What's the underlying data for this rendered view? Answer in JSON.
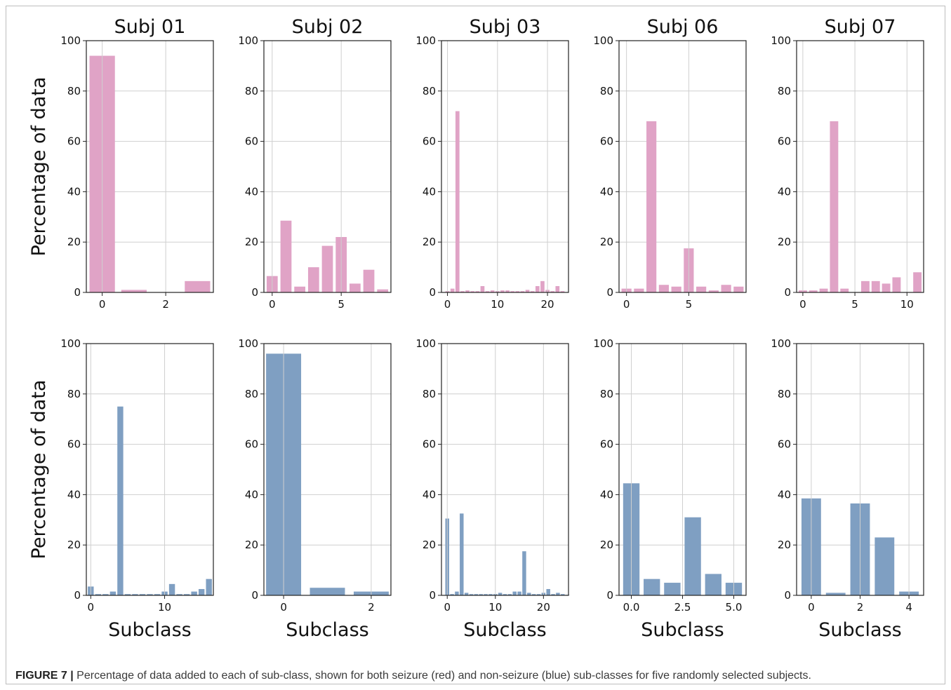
{
  "caption": {
    "label": "FIGURE 7 |",
    "text": " Percentage of data added to each of sub-class, shown for both seizure (red) and non-seizure (blue) sub-classes for five randomly selected subjects."
  },
  "colors": {
    "seizure": "#e0a3c6",
    "non_seizure": "#7f9fc2",
    "grid": "#cfcfcf"
  },
  "chart_data": [
    {
      "type": "bar",
      "group": "seizure",
      "title": "Subj 01",
      "xlabel": "",
      "ylabel": "Percentage of data",
      "x": [
        0,
        1,
        2,
        3
      ],
      "values": [
        94,
        1,
        0,
        4.5
      ],
      "xlim": [
        -0.5,
        3.5
      ],
      "ylim": [
        0,
        100
      ],
      "xticks": [
        0,
        2
      ],
      "xtick_labels": [
        "0",
        "2"
      ],
      "yticks": [
        0,
        20,
        40,
        60,
        80,
        100
      ],
      "grid": true
    },
    {
      "type": "bar",
      "group": "seizure",
      "title": "Subj 02",
      "xlabel": "",
      "ylabel": "",
      "x": [
        0,
        1,
        2,
        3,
        4,
        5,
        6,
        7,
        8
      ],
      "values": [
        6.5,
        28.5,
        2.3,
        10,
        18.5,
        22,
        3.5,
        9,
        1.2
      ],
      "xlim": [
        -0.6,
        8.6
      ],
      "ylim": [
        0,
        100
      ],
      "xticks": [
        0,
        5
      ],
      "xtick_labels": [
        "0",
        "5"
      ],
      "yticks": [
        0,
        20,
        40,
        60,
        80,
        100
      ],
      "grid": true
    },
    {
      "type": "bar",
      "group": "seizure",
      "title": "Subj 03",
      "xlabel": "",
      "ylabel": "",
      "x": [
        0,
        1,
        2,
        3,
        4,
        5,
        6,
        7,
        8,
        9,
        10,
        11,
        12,
        13,
        14,
        15,
        16,
        17,
        18,
        19,
        20,
        21,
        22,
        23
      ],
      "values": [
        0.5,
        1.5,
        72,
        0.5,
        0.8,
        0.5,
        0.5,
        2.5,
        0.5,
        0.8,
        0.5,
        0.8,
        0.8,
        0.5,
        0.5,
        0.5,
        1,
        0.5,
        2.5,
        4.5,
        1,
        0.5,
        2.5,
        0.5
      ],
      "xlim": [
        -1.2,
        24.2
      ],
      "ylim": [
        0,
        100
      ],
      "xticks": [
        0,
        10,
        20
      ],
      "xtick_labels": [
        "0",
        "10",
        "20"
      ],
      "yticks": [
        0,
        20,
        40,
        60,
        80,
        100
      ],
      "grid": true
    },
    {
      "type": "bar",
      "group": "seizure",
      "title": "Subj 06",
      "xlabel": "",
      "ylabel": "",
      "x": [
        0,
        1,
        2,
        3,
        4,
        5,
        6,
        7,
        8,
        9
      ],
      "values": [
        1.5,
        1.5,
        68,
        3,
        2.3,
        17.5,
        2.3,
        0.8,
        3,
        2.3
      ],
      "xlim": [
        -0.6,
        9.6
      ],
      "ylim": [
        0,
        100
      ],
      "xticks": [
        0,
        5
      ],
      "xtick_labels": [
        "0",
        "5"
      ],
      "yticks": [
        0,
        20,
        40,
        60,
        80,
        100
      ],
      "grid": true
    },
    {
      "type": "bar",
      "group": "seizure",
      "title": "Subj 07",
      "xlabel": "",
      "ylabel": "",
      "x": [
        0,
        1,
        2,
        3,
        4,
        5,
        6,
        7,
        8,
        9,
        10,
        11
      ],
      "values": [
        0.8,
        0.8,
        1.5,
        68,
        1.5,
        0,
        4.5,
        4.5,
        3.5,
        6,
        0,
        8
      ],
      "xlim": [
        -0.6,
        11.6
      ],
      "ylim": [
        0,
        100
      ],
      "xticks": [
        0,
        5,
        10
      ],
      "xtick_labels": [
        "0",
        "5",
        "10"
      ],
      "yticks": [
        0,
        20,
        40,
        60,
        80,
        100
      ],
      "grid": true
    },
    {
      "type": "bar",
      "group": "non-seizure",
      "title": "",
      "xlabel": "Subclass",
      "ylabel": "Percentage of data",
      "x": [
        0,
        1,
        2,
        3,
        4,
        5,
        6,
        7,
        8,
        9,
        10,
        11,
        12,
        13,
        14,
        15,
        16
      ],
      "values": [
        3.5,
        0.5,
        0.5,
        1.5,
        75,
        0.5,
        0.5,
        0.5,
        0.5,
        0.5,
        1.5,
        4.5,
        0.5,
        0.5,
        1.5,
        2.5,
        6.5
      ],
      "xlim": [
        -0.6,
        16.6
      ],
      "ylim": [
        0,
        100
      ],
      "xticks": [
        0,
        10
      ],
      "xtick_labels": [
        "0",
        "10"
      ],
      "yticks": [
        0,
        20,
        40,
        60,
        80,
        100
      ],
      "grid": true
    },
    {
      "type": "bar",
      "group": "non-seizure",
      "title": "",
      "xlabel": "Subclass",
      "ylabel": "",
      "x": [
        0,
        1,
        2
      ],
      "values": [
        96,
        3,
        1.5
      ],
      "xlim": [
        -0.45,
        2.45
      ],
      "ylim": [
        0,
        100
      ],
      "xticks": [
        0,
        2
      ],
      "xtick_labels": [
        "0",
        "2"
      ],
      "yticks": [
        0,
        20,
        40,
        60,
        80,
        100
      ],
      "grid": true
    },
    {
      "type": "bar",
      "group": "non-seizure",
      "title": "",
      "xlabel": "Subclass",
      "ylabel": "",
      "x": [
        0,
        1,
        2,
        3,
        4,
        5,
        6,
        7,
        8,
        9,
        10,
        11,
        12,
        13,
        14,
        15,
        16,
        17,
        18,
        19,
        20,
        21,
        22,
        23,
        24,
        25
      ],
      "values": [
        30.5,
        0.5,
        1.5,
        32.5,
        1,
        0.5,
        0.5,
        0.5,
        0.5,
        0.5,
        0.5,
        1,
        0.5,
        0.5,
        1.5,
        1.5,
        17.5,
        1,
        0.5,
        0.5,
        1,
        2.5,
        0.5,
        1,
        0.5,
        0.2
      ],
      "xlim": [
        -1.2,
        25.2
      ],
      "ylim": [
        0,
        100
      ],
      "xticks": [
        0,
        10,
        20
      ],
      "xtick_labels": [
        "0",
        "10",
        "20"
      ],
      "yticks": [
        0,
        20,
        40,
        60,
        80,
        100
      ],
      "grid": true
    },
    {
      "type": "bar",
      "group": "non-seizure",
      "title": "",
      "xlabel": "Subclass",
      "ylabel": "",
      "x": [
        0,
        1,
        2,
        3,
        4,
        5
      ],
      "values": [
        44.5,
        6.5,
        5,
        31,
        8.5,
        5
      ],
      "xlim": [
        -0.6,
        5.6
      ],
      "ylim": [
        0,
        100
      ],
      "xticks": [
        0,
        2.5,
        5
      ],
      "xtick_labels": [
        "0.0",
        "2.5",
        "5.0"
      ],
      "yticks": [
        0,
        20,
        40,
        60,
        80,
        100
      ],
      "grid": true
    },
    {
      "type": "bar",
      "group": "non-seizure",
      "title": "",
      "xlabel": "Subclass",
      "ylabel": "",
      "x": [
        0,
        1,
        2,
        3,
        4
      ],
      "values": [
        38.5,
        1,
        36.5,
        23,
        1.5
      ],
      "xlim": [
        -0.6,
        4.6
      ],
      "ylim": [
        0,
        100
      ],
      "xticks": [
        0,
        2,
        4
      ],
      "xtick_labels": [
        "0",
        "2",
        "4"
      ],
      "yticks": [
        0,
        20,
        40,
        60,
        80,
        100
      ],
      "grid": true
    }
  ]
}
